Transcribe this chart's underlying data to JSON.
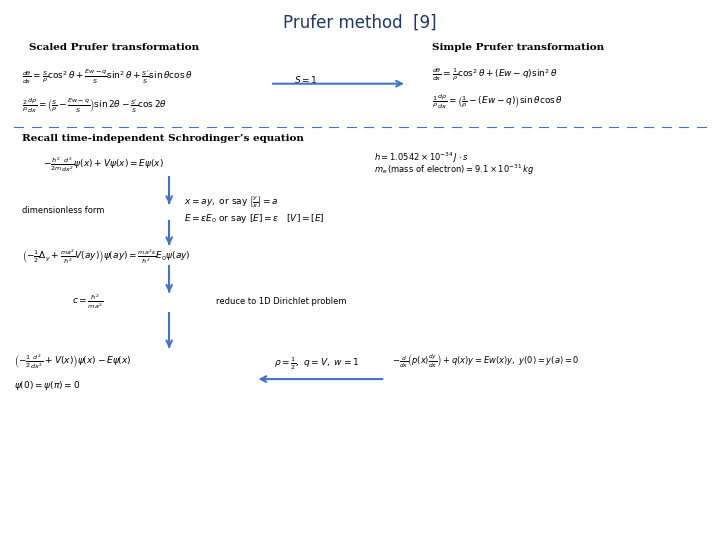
{
  "title": "Prufer method  [9]",
  "title_color": "#1F3864",
  "bg_color": "#ffffff",
  "text_color": "#000000",
  "arrow_color": "#4472C4",
  "dashed_line_color": "#4472C4",
  "scaled_prufer_label": "Scaled Prufer transformation",
  "simple_prufer_label": "Simple Prufer transformation",
  "recall_label": "Recall time-independent Schrodinger’s equation",
  "dimensionless_label": "dimensionless form",
  "reduce_label": "reduce to 1D Dirichlet problem"
}
